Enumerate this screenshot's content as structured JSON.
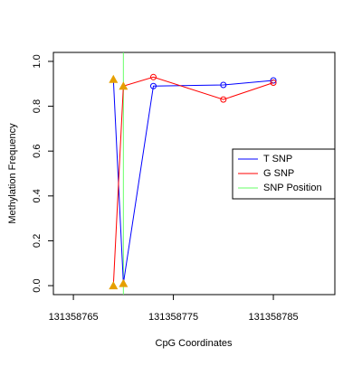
{
  "chart_data": {
    "type": "line",
    "x_label": "CpG Coordinates",
    "y_label": "Methylation Frequency",
    "xlim": [
      131358763,
      131358791.15
    ],
    "ylim": [
      -0.04,
      1.04
    ],
    "xticks": [
      131358765,
      131358775,
      131358785
    ],
    "yticks": [
      {
        "value": 0,
        "label": "0.0"
      },
      {
        "value": 0.2,
        "label": "0.2"
      },
      {
        "value": 0.4,
        "label": "0.4"
      },
      {
        "value": 0.6,
        "label": "0.6"
      },
      {
        "value": 0.8,
        "label": "0.8"
      },
      {
        "value": 1,
        "label": "1.0"
      }
    ],
    "marker_color": "#E69F00",
    "series": [
      {
        "name": "T SNP",
        "color": "#0000FF",
        "x": [
          131358769,
          131358770,
          131358773,
          131358780,
          131358785
        ],
        "values": [
          0.92,
          0.01,
          0.89,
          0.895,
          0.915
        ],
        "shapes": [
          "triangle",
          "triangle",
          "circle",
          "circle",
          "circle"
        ]
      },
      {
        "name": "G SNP",
        "color": "#FF0000",
        "x": [
          131358769,
          131358770,
          131358773,
          131358780,
          131358785
        ],
        "values": [
          0.0,
          0.89,
          0.93,
          0.83,
          0.905
        ],
        "shapes": [
          "triangle",
          "triangle",
          "circle",
          "circle",
          "circle"
        ]
      }
    ],
    "snp_line": {
      "name": "SNP Position",
      "color": "#66FF66",
      "x": 131358770
    },
    "legend": "right"
  }
}
